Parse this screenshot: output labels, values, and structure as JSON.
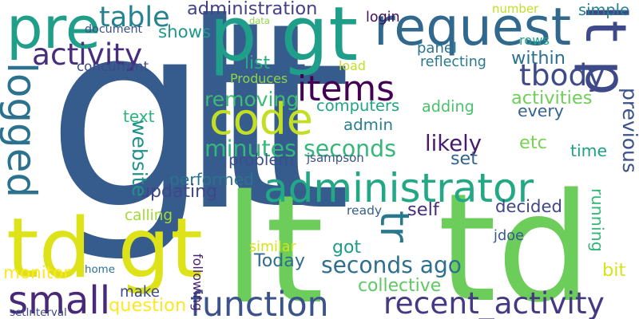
{
  "words": [
    {
      "text": "gt",
      "color": "#365c8d",
      "vertical": false
    },
    {
      "text": "lt",
      "color": "#365c8d",
      "vertical": false
    },
    {
      "text": "lt",
      "color": "#6ccd5a",
      "vertical": false
    },
    {
      "text": "td",
      "color": "#6ccd5a",
      "vertical": false
    },
    {
      "text": "td gt",
      "color": "#dde318",
      "vertical": false
    },
    {
      "text": "p gt",
      "color": "#1f9e89",
      "vertical": false
    },
    {
      "text": "pre",
      "color": "#1f9e89",
      "vertical": false
    },
    {
      "text": "request",
      "color": "#31688e",
      "vertical": false
    },
    {
      "text": "lt p",
      "color": "#3e4989",
      "vertical": true
    },
    {
      "text": "code",
      "color": "#c2df23",
      "vertical": false
    },
    {
      "text": "administrator",
      "color": "#22a884",
      "vertical": false
    },
    {
      "text": "function",
      "color": "#3b528b",
      "vertical": false
    },
    {
      "text": "small",
      "color": "#482878",
      "vertical": false
    },
    {
      "text": "tr",
      "color": "#2a788e",
      "vertical": true
    },
    {
      "text": "logged",
      "color": "#2c728e",
      "vertical": true
    },
    {
      "text": "items",
      "color": "#440154",
      "vertical": false
    },
    {
      "text": "recent_activity",
      "color": "#443983",
      "vertical": false
    },
    {
      "text": "activity",
      "color": "#472d7b",
      "vertical": false
    },
    {
      "text": "table",
      "color": "#26828e",
      "vertical": false
    },
    {
      "text": "minutes seconds",
      "color": "#35b779",
      "vertical": false
    },
    {
      "text": "seconds ago",
      "color": "#2e6e8e",
      "vertical": false
    },
    {
      "text": "tbody",
      "color": "#3e4a89",
      "vertical": false
    },
    {
      "text": "likely",
      "color": "#481a6c",
      "vertical": false
    },
    {
      "text": "administration",
      "color": "#424086",
      "vertical": false
    },
    {
      "text": "shows",
      "color": "#1f988b",
      "vertical": false
    },
    {
      "text": "panel",
      "color": "#2a768e",
      "vertical": false
    },
    {
      "text": "within",
      "color": "#2d708e",
      "vertical": false
    },
    {
      "text": "simple",
      "color": "#27808e",
      "vertical": false
    },
    {
      "text": "list",
      "color": "#25ac82",
      "vertical": false
    },
    {
      "text": "removing",
      "color": "#3dbc74",
      "vertical": false
    },
    {
      "text": "computers",
      "color": "#20a386",
      "vertical": false
    },
    {
      "text": "admin",
      "color": "#287d8e",
      "vertical": false
    },
    {
      "text": "adding",
      "color": "#4ac16d",
      "vertical": false
    },
    {
      "text": "activities",
      "color": "#6ece58",
      "vertical": false
    },
    {
      "text": "every",
      "color": "#33638d",
      "vertical": false
    },
    {
      "text": "text",
      "color": "#2db27d",
      "vertical": false
    },
    {
      "text": "previous",
      "color": "#3b528b",
      "vertical": true
    },
    {
      "text": "performed",
      "color": "#2c728e",
      "vertical": false
    },
    {
      "text": "problem",
      "color": "#3d4d8a",
      "vertical": false
    },
    {
      "text": "set",
      "color": "#32648e",
      "vertical": false
    },
    {
      "text": "updating",
      "color": "#3f4788",
      "vertical": false
    },
    {
      "text": "website",
      "color": "#21918c",
      "vertical": true
    },
    {
      "text": "etc",
      "color": "#7ad151",
      "vertical": false
    },
    {
      "text": "time",
      "color": "#1fa088",
      "vertical": false
    },
    {
      "text": "calling",
      "color": "#a2da37",
      "vertical": false
    },
    {
      "text": "self",
      "color": "#472c7a",
      "vertical": false
    },
    {
      "text": "decided",
      "color": "#3f4788",
      "vertical": false
    },
    {
      "text": "running",
      "color": "#35b779",
      "vertical": true
    },
    {
      "text": "got",
      "color": "#1e9b8a",
      "vertical": false
    },
    {
      "text": "Today",
      "color": "#2f6c8e",
      "vertical": false
    },
    {
      "text": "monitor",
      "color": "#fde725",
      "vertical": false
    },
    {
      "text": "make",
      "color": "#3e4989",
      "vertical": false
    },
    {
      "text": "collective",
      "color": "#5ec962",
      "vertical": false
    },
    {
      "text": "question",
      "color": "#fde725",
      "vertical": false
    },
    {
      "text": "bit",
      "color": "#d8e219",
      "vertical": false
    },
    {
      "text": "following",
      "color": "#482173",
      "vertical": true
    },
    {
      "text": "home",
      "color": "#2d708e",
      "vertical": false
    },
    {
      "text": "similar",
      "color": "#d5e21a",
      "vertical": false
    },
    {
      "text": "jdoe",
      "color": "#38598c",
      "vertical": false
    },
    {
      "text": "ready",
      "color": "#355f8d",
      "vertical": false
    },
    {
      "text": "jsampson",
      "color": "#3a548c",
      "vertical": false
    },
    {
      "text": "setInterval",
      "color": "#3e4989",
      "vertical": false
    },
    {
      "text": "document",
      "color": "#3b518b",
      "vertical": false
    },
    {
      "text": "concurrent",
      "color": "#3e4a89",
      "vertical": false
    },
    {
      "text": "Produces",
      "color": "#8bd646",
      "vertical": false
    },
    {
      "text": "data",
      "color": "#8fd744",
      "vertical": false
    },
    {
      "text": "login",
      "color": "#460b5e",
      "vertical": false
    },
    {
      "text": "number",
      "color": "#c0df25",
      "vertical": false
    },
    {
      "text": "rows",
      "color": "#1fa088",
      "vertical": false
    },
    {
      "text": "load",
      "color": "#c2df23",
      "vertical": false
    },
    {
      "text": "reflecting",
      "color": "#2a788e",
      "vertical": false
    }
  ]
}
